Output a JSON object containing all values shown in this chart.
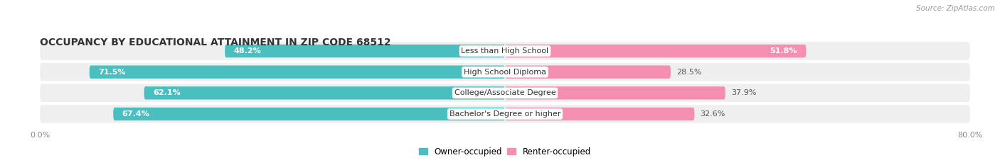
{
  "title": "OCCUPANCY BY EDUCATIONAL ATTAINMENT IN ZIP CODE 68512",
  "source": "Source: ZipAtlas.com",
  "categories": [
    "Less than High School",
    "High School Diploma",
    "College/Associate Degree",
    "Bachelor's Degree or higher"
  ],
  "owner_values": [
    48.2,
    71.5,
    62.1,
    67.4
  ],
  "renter_values": [
    51.8,
    28.5,
    37.9,
    32.6
  ],
  "owner_color": "#4BBFBF",
  "renter_color": "#F48FB1",
  "row_bg_color": "#EFEFEF",
  "x_max": 80.0,
  "x_left_label": "0.0%",
  "x_right_label": "80.0%",
  "legend_owner": "Owner-occupied",
  "legend_renter": "Renter-occupied",
  "title_fontsize": 10,
  "source_fontsize": 7.5,
  "bar_label_fontsize": 8,
  "category_label_fontsize": 8
}
